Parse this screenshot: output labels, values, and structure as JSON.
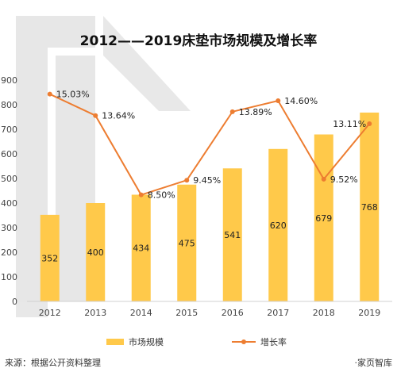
{
  "chart_data": {
    "type": "bar",
    "title": "2012——2019床垫市场规模及增长率",
    "categories": [
      "2012",
      "2013",
      "2014",
      "2015",
      "2016",
      "2017",
      "2018",
      "2019"
    ],
    "series": [
      {
        "name": "市场规模",
        "type": "bar",
        "color": "#FFC94A",
        "values": [
          352,
          400,
          434,
          475,
          541,
          620,
          679,
          768
        ],
        "value_labels": [
          "352",
          "400",
          "434",
          "475",
          "541",
          "620",
          "679",
          "768"
        ]
      },
      {
        "name": "增长率",
        "type": "line",
        "color": "#ED7D31",
        "values": [
          15.03,
          13.64,
          8.5,
          9.45,
          13.89,
          14.6,
          9.52,
          13.11
        ],
        "value_labels": [
          "15.03%",
          "13.64%",
          "8.50%",
          "9.45%",
          "13.89%",
          "14.60%",
          "9.52%",
          "13.11%"
        ]
      }
    ],
    "y_ticks": [
      "0",
      "100",
      "200",
      "300",
      "400",
      "500",
      "600",
      "700",
      "800",
      "900"
    ],
    "ylim": [
      0,
      900
    ],
    "grid": false,
    "legend": "bottom"
  },
  "footer": {
    "source": "来源：根据公开资料整理",
    "brand": "·家页智库"
  }
}
